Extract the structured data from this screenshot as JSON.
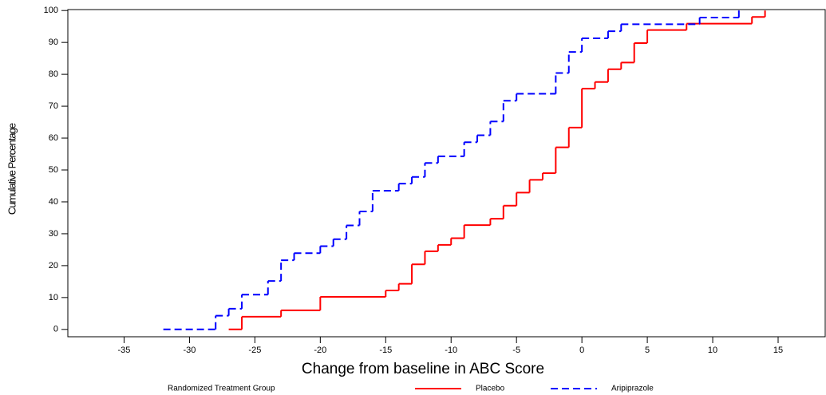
{
  "chart_data": {
    "type": "step",
    "x_label": "Change from baseline in ABC Score",
    "y_label": "Cumulative Percentage",
    "legend_title": "Randomized Treatment Group",
    "legend_position": "bottom",
    "xlim": [
      -39.3,
      18.6
    ],
    "ylim": [
      -2.3,
      100.3
    ],
    "xticks": [
      -35,
      -30,
      -25,
      -20,
      -15,
      -10,
      -5,
      0,
      5,
      10,
      15
    ],
    "yticks": [
      0,
      10,
      20,
      30,
      40,
      50,
      60,
      70,
      80,
      90,
      100
    ],
    "series": [
      {
        "name": "Placebo",
        "color": "#ff0000",
        "dashed": false,
        "x": [
          -27,
          -26,
          -23,
          -20,
          -15,
          -14,
          -13,
          -12,
          -11,
          -10,
          -9,
          -7,
          -6,
          -5,
          -4,
          -3,
          -2,
          -1,
          0,
          1,
          2,
          3,
          4,
          5,
          8,
          13,
          14
        ],
        "values": [
          0,
          4,
          6,
          10.2,
          12.2,
          14.3,
          20.4,
          24.5,
          26.5,
          28.6,
          32.7,
          34.7,
          38.8,
          42.9,
          46.9,
          49,
          57.1,
          63.3,
          75.5,
          77.6,
          81.6,
          83.7,
          89.8,
          93.9,
          95.9,
          98,
          100
        ]
      },
      {
        "name": "Aripiprazole",
        "color": "#0000ff",
        "dashed": true,
        "x": [
          -32,
          -28,
          -27,
          -26,
          -24,
          -23,
          -22,
          -20,
          -19,
          -18,
          -17,
          -16,
          -14,
          -13,
          -12,
          -11,
          -9,
          -8,
          -7,
          -6,
          -5,
          -2,
          -1,
          0,
          2,
          3,
          9,
          12
        ],
        "values": [
          0,
          4.3,
          6.5,
          10.9,
          15.2,
          21.7,
          23.9,
          26.1,
          28.3,
          32.6,
          37,
          43.5,
          45.7,
          47.8,
          52.2,
          54.3,
          58.7,
          60.9,
          65.2,
          71.7,
          73.9,
          80.4,
          87,
          91.3,
          93.5,
          95.7,
          97.8,
          100
        ]
      }
    ]
  }
}
